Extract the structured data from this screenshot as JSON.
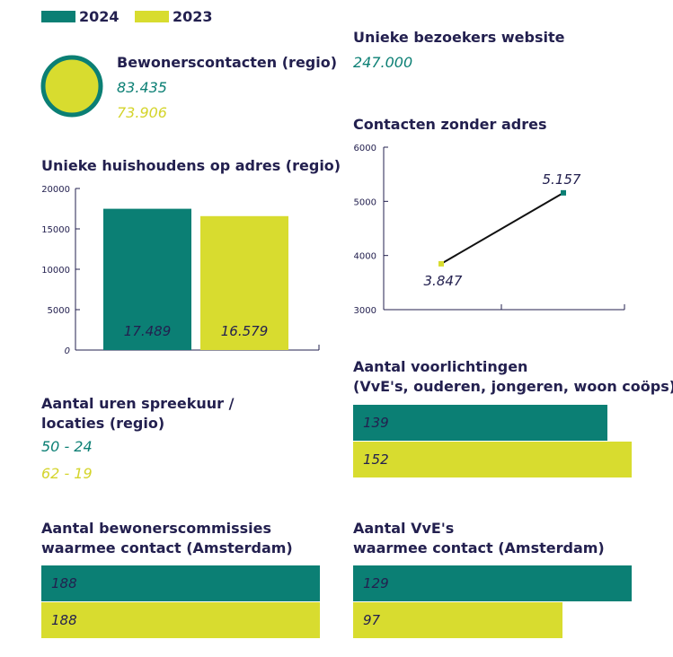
{
  "colors": {
    "teal": "#0b7f74",
    "yellow": "#d8dc2f",
    "text": "#23204f"
  },
  "legend": [
    {
      "label": "2024",
      "color": "#0b7f74"
    },
    {
      "label": "2023",
      "color": "#d8dc2f"
    }
  ],
  "bewonerscontacten": {
    "title": "Bewonerscontacten (regio)",
    "value_2024": "83.435",
    "value_2023": "73.906"
  },
  "bezoekers": {
    "title": "Unieke bezoekers website",
    "value": "247.000"
  },
  "uren": {
    "title_line1": "Aantal uren spreekuur /",
    "title_line2": "locaties (regio)",
    "value_2024": "50 - 24",
    "value_2023": "62 - 19"
  },
  "chart_data": [
    {
      "type": "bar",
      "title": "Unieke huishoudens op adres (regio)",
      "categories": [
        "2024",
        "2023"
      ],
      "values": [
        17489,
        16579
      ],
      "data_labels": [
        "17.489",
        "16.579"
      ],
      "yticks": [
        0,
        5000,
        10000,
        15000,
        20000
      ],
      "ylim": [
        0,
        20000
      ]
    },
    {
      "type": "line",
      "title": "Contacten zonder adres",
      "categories": [
        "2023",
        "2024"
      ],
      "values": [
        3847,
        5157
      ],
      "data_labels": [
        "3.847",
        "5.157"
      ],
      "yticks": [
        3000,
        4000,
        5000,
        6000
      ],
      "ylim": [
        3000,
        6000
      ]
    },
    {
      "type": "bar",
      "orientation": "horizontal",
      "title_line1": "Aantal voorlichtingen",
      "title_line2": "(VvE's, ouderen, jongeren, woon coöps)",
      "categories": [
        "2024",
        "2023"
      ],
      "values": [
        139,
        152
      ],
      "data_labels": [
        "139",
        "152"
      ]
    },
    {
      "type": "bar",
      "orientation": "horizontal",
      "title_line1": "Aantal bewonerscommissies",
      "title_line2": "waarmee contact (Amsterdam)",
      "categories": [
        "2024",
        "2023"
      ],
      "values": [
        188,
        188
      ],
      "data_labels": [
        "188",
        "188"
      ]
    },
    {
      "type": "bar",
      "orientation": "horizontal",
      "title_line1": "Aantal VvE's",
      "title_line2": "waarmee contact (Amsterdam)",
      "categories": [
        "2024",
        "2023"
      ],
      "values": [
        129,
        97
      ],
      "data_labels": [
        "129",
        "97"
      ]
    }
  ]
}
